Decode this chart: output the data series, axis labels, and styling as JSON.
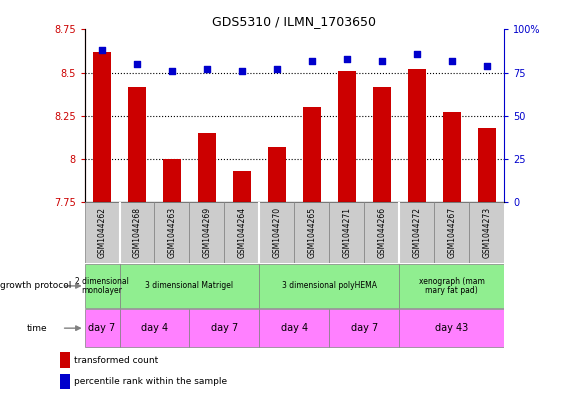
{
  "title": "GDS5310 / ILMN_1703650",
  "samples": [
    "GSM1044262",
    "GSM1044268",
    "GSM1044263",
    "GSM1044269",
    "GSM1044264",
    "GSM1044270",
    "GSM1044265",
    "GSM1044271",
    "GSM1044266",
    "GSM1044272",
    "GSM1044267",
    "GSM1044273"
  ],
  "transformed_count": [
    8.62,
    8.42,
    8.0,
    8.15,
    7.93,
    8.07,
    8.3,
    8.51,
    8.42,
    8.52,
    8.27,
    8.18
  ],
  "percentile_rank": [
    88,
    80,
    76,
    77,
    76,
    77,
    82,
    83,
    82,
    86,
    82,
    79
  ],
  "ylim_left": [
    7.75,
    8.75
  ],
  "ylim_right": [
    0,
    100
  ],
  "yticks_left": [
    7.75,
    8.0,
    8.25,
    8.5,
    8.75
  ],
  "yticks_right": [
    0,
    25,
    50,
    75,
    100
  ],
  "ytick_labels_left": [
    "7.75",
    "8",
    "8.25",
    "8.5",
    "8.75"
  ],
  "ytick_labels_right": [
    "0",
    "25",
    "50",
    "75",
    "100%"
  ],
  "dotted_line_y": [
    8.0,
    8.25,
    8.5
  ],
  "bar_color": "#cc0000",
  "dot_color": "#0000cc",
  "dot_marker": "s",
  "dot_size": 18,
  "growth_protocol_groups": [
    {
      "label": "2 dimensional\nmonolayer",
      "start": 0,
      "end": 1,
      "color": "#90ee90"
    },
    {
      "label": "3 dimensional Matrigel",
      "start": 1,
      "end": 5,
      "color": "#90ee90"
    },
    {
      "label": "3 dimensional polyHEMA",
      "start": 5,
      "end": 9,
      "color": "#90ee90"
    },
    {
      "label": "xenograph (mam\nmary fat pad)",
      "start": 9,
      "end": 12,
      "color": "#90ee90"
    }
  ],
  "time_groups": [
    {
      "label": "day 7",
      "start": 0,
      "end": 1,
      "color": "#ff80ff"
    },
    {
      "label": "day 4",
      "start": 1,
      "end": 3,
      "color": "#ff80ff"
    },
    {
      "label": "day 7",
      "start": 3,
      "end": 5,
      "color": "#ff80ff"
    },
    {
      "label": "day 4",
      "start": 5,
      "end": 7,
      "color": "#ff80ff"
    },
    {
      "label": "day 7",
      "start": 7,
      "end": 9,
      "color": "#ff80ff"
    },
    {
      "label": "day 43",
      "start": 9,
      "end": 12,
      "color": "#ff80ff"
    }
  ],
  "sample_box_color": "#cccccc",
  "legend_red_label": "transformed count",
  "legend_blue_label": "percentile rank within the sample",
  "left_axis_color": "#cc0000",
  "right_axis_color": "#0000cc",
  "bar_width": 0.5,
  "group_borders": [
    1,
    5,
    9
  ],
  "growth_protocol_label": "growth protocol",
  "time_label": "time"
}
